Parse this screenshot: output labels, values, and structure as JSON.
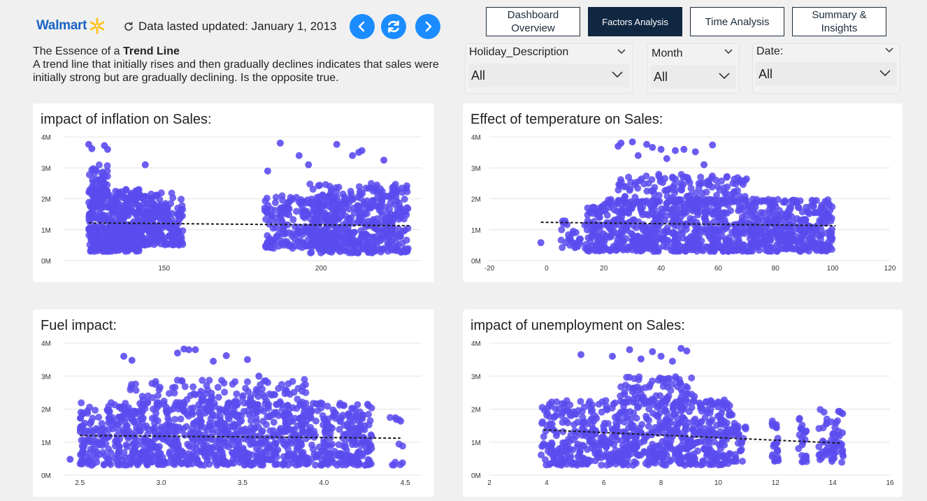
{
  "header": {
    "brand": "Walmart",
    "updated_text": "Data lasted updated: January 1, 2013",
    "brand_color": "#1a63c2",
    "spark_color": "#ffc220"
  },
  "nav": {
    "buttons": [
      {
        "label_l1": "Dashboard",
        "label_l2": "Overview",
        "active": false
      },
      {
        "label_l1": "Factors Analysis",
        "label_l2": "",
        "active": true
      },
      {
        "label_l1": "Time Analysis",
        "label_l2": "",
        "active": false
      },
      {
        "label_l1": "Summary &",
        "label_l2": "Insights",
        "active": false
      }
    ],
    "icons": [
      "back-icon",
      "refresh-icon",
      "forward-icon"
    ]
  },
  "essence": {
    "prefix": "The Essence of a ",
    "bold": "Trend Line",
    "body": "A trend line that initially rises and then gradually declines indicates that sales were initially strong but are gradually declining. Is the opposite true."
  },
  "slicers": [
    {
      "label": "Holiday_Description",
      "value": "All"
    },
    {
      "label": "Month",
      "value": "All"
    },
    {
      "label": "Date:",
      "value": "All"
    }
  ],
  "chart_data": [
    {
      "type": "scatter",
      "title": "impact of inflation on Sales:",
      "color": "#5b4bef",
      "trend": {
        "x": [
          126,
          228
        ],
        "y": [
          1.22,
          1.13
        ]
      },
      "xlim": [
        118,
        232
      ],
      "xticks": [
        150,
        200
      ],
      "ylim": [
        0,
        4
      ],
      "yticks": [
        0,
        1,
        2,
        3,
        4
      ],
      "ytick_labels": [
        "0M",
        "1M",
        "2M",
        "3M",
        "4M"
      ],
      "clusters": [
        {
          "x": [
            126,
            142
          ],
          "y": [
            0.3,
            2.3
          ],
          "n": 450
        },
        {
          "x": [
            126,
            132
          ],
          "y": [
            2.2,
            3.1
          ],
          "n": 50
        },
        {
          "x": [
            142,
            156
          ],
          "y": [
            0.5,
            2.2
          ],
          "n": 220
        },
        {
          "x": [
            182,
            206
          ],
          "y": [
            0.4,
            2.1
          ],
          "n": 220
        },
        {
          "x": [
            196,
            228
          ],
          "y": [
            0.25,
            2.5
          ],
          "n": 450
        }
      ],
      "outliers": [
        [
          126,
          3.76
        ],
        [
          127,
          3.62
        ],
        [
          131,
          3.72
        ],
        [
          132,
          3.6
        ],
        [
          144,
          3.1
        ],
        [
          183,
          2.9
        ],
        [
          187,
          3.8
        ],
        [
          193,
          3.4
        ],
        [
          196,
          3.1
        ],
        [
          205,
          3.76
        ],
        [
          210,
          3.4
        ],
        [
          212,
          3.5
        ],
        [
          213,
          3.56
        ],
        [
          220,
          3.25
        ]
      ],
      "trend_dash": "4 3"
    },
    {
      "type": "scatter",
      "title": "Effect of temperature on Sales:",
      "color": "#5b4bef",
      "trend": {
        "x": [
          -2,
          101
        ],
        "y": [
          1.24,
          1.13
        ]
      },
      "xlim": [
        -20,
        120
      ],
      "xticks": [
        -20,
        0,
        20,
        40,
        60,
        80,
        100,
        120
      ],
      "ylim": [
        0,
        4
      ],
      "yticks": [
        0,
        1,
        2,
        3,
        4
      ],
      "ytick_labels": [
        "0M",
        "1M",
        "2M",
        "3M",
        "4M"
      ],
      "clusters": [
        {
          "x": [
            14,
            100
          ],
          "y": [
            0.3,
            2.0
          ],
          "n": 1000
        },
        {
          "x": [
            25,
            70
          ],
          "y": [
            1.9,
            2.8
          ],
          "n": 140
        },
        {
          "x": [
            5,
            14
          ],
          "y": [
            0.4,
            1.3
          ],
          "n": 30
        }
      ],
      "outliers": [
        [
          -2,
          0.58
        ],
        [
          25,
          3.7
        ],
        [
          26,
          3.8
        ],
        [
          30,
          3.84
        ],
        [
          35,
          3.76
        ],
        [
          37,
          3.66
        ],
        [
          40,
          3.6
        ],
        [
          45,
          3.56
        ],
        [
          48,
          3.6
        ],
        [
          52,
          3.52
        ],
        [
          58,
          3.74
        ],
        [
          32,
          3.4
        ],
        [
          42,
          3.3
        ],
        [
          55,
          3.1
        ]
      ],
      "trend_dash": "4 3"
    },
    {
      "type": "scatter",
      "title": "Fuel impact:",
      "color": "#5b4bef",
      "trend": {
        "x": [
          2.5,
          4.47
        ],
        "y": [
          1.2,
          1.12
        ]
      },
      "xlim": [
        2.4,
        4.6
      ],
      "xticks": [
        2.5,
        3.0,
        3.5,
        4.0,
        4.5
      ],
      "xtick_labels": [
        "2.5",
        "3.0",
        "3.5",
        "4.0",
        "4.5"
      ],
      "ylim": [
        0,
        4
      ],
      "yticks": [
        0,
        1,
        2,
        3,
        4
      ],
      "ytick_labels": [
        "0M",
        "1M",
        "2M",
        "3M",
        "4M"
      ],
      "clusters": [
        {
          "x": [
            2.5,
            4.3
          ],
          "y": [
            0.3,
            2.2
          ],
          "n": 1100
        },
        {
          "x": [
            2.8,
            3.9
          ],
          "y": [
            2.1,
            2.9
          ],
          "n": 120
        },
        {
          "x": [
            4.4,
            4.5
          ],
          "y": [
            0.3,
            1.8
          ],
          "n": 12
        }
      ],
      "outliers": [
        [
          2.44,
          0.48
        ],
        [
          2.77,
          3.6
        ],
        [
          2.82,
          3.48
        ],
        [
          3.1,
          3.7
        ],
        [
          3.14,
          3.82
        ],
        [
          3.17,
          3.8
        ],
        [
          3.21,
          3.8
        ],
        [
          3.4,
          3.62
        ],
        [
          3.53,
          3.5
        ],
        [
          3.32,
          3.45
        ],
        [
          3.6,
          3.0
        ]
      ],
      "trend_dash": "4 3"
    },
    {
      "type": "scatter",
      "title": "impact of unemployment on Sales:",
      "color": "#5b4bef",
      "trend": {
        "x": [
          3.9,
          14.3
        ],
        "y": [
          1.37,
          0.97
        ]
      },
      "xlim": [
        2,
        16
      ],
      "xticks": [
        2,
        4,
        6,
        8,
        10,
        12,
        14,
        16
      ],
      "ylim": [
        0,
        4
      ],
      "yticks": [
        0,
        1,
        2,
        3,
        4
      ],
      "ytick_labels": [
        "0M",
        "1M",
        "2M",
        "3M",
        "4M"
      ],
      "clusters": [
        {
          "x": [
            3.8,
            10.5
          ],
          "y": [
            0.3,
            2.3
          ],
          "n": 700
        },
        {
          "x": [
            6.5,
            9.2
          ],
          "y": [
            2.2,
            3.0
          ],
          "n": 80
        },
        {
          "x": [
            10.5,
            11.0
          ],
          "y": [
            0.4,
            1.6
          ],
          "n": 30
        },
        {
          "x": [
            11.8,
            12.1
          ],
          "y": [
            0.4,
            1.7
          ],
          "n": 25
        },
        {
          "x": [
            12.8,
            13.1
          ],
          "y": [
            0.4,
            1.8
          ],
          "n": 25
        },
        {
          "x": [
            13.5,
            14.4
          ],
          "y": [
            0.35,
            2.0
          ],
          "n": 60
        }
      ],
      "outliers": [
        [
          5.2,
          3.65
        ],
        [
          6.3,
          3.6
        ],
        [
          6.9,
          3.8
        ],
        [
          7.7,
          3.74
        ],
        [
          8.0,
          3.6
        ],
        [
          8.7,
          3.84
        ],
        [
          8.9,
          3.76
        ],
        [
          7.3,
          3.52
        ],
        [
          8.4,
          3.45
        ]
      ],
      "trend_dash": "4 3"
    }
  ]
}
